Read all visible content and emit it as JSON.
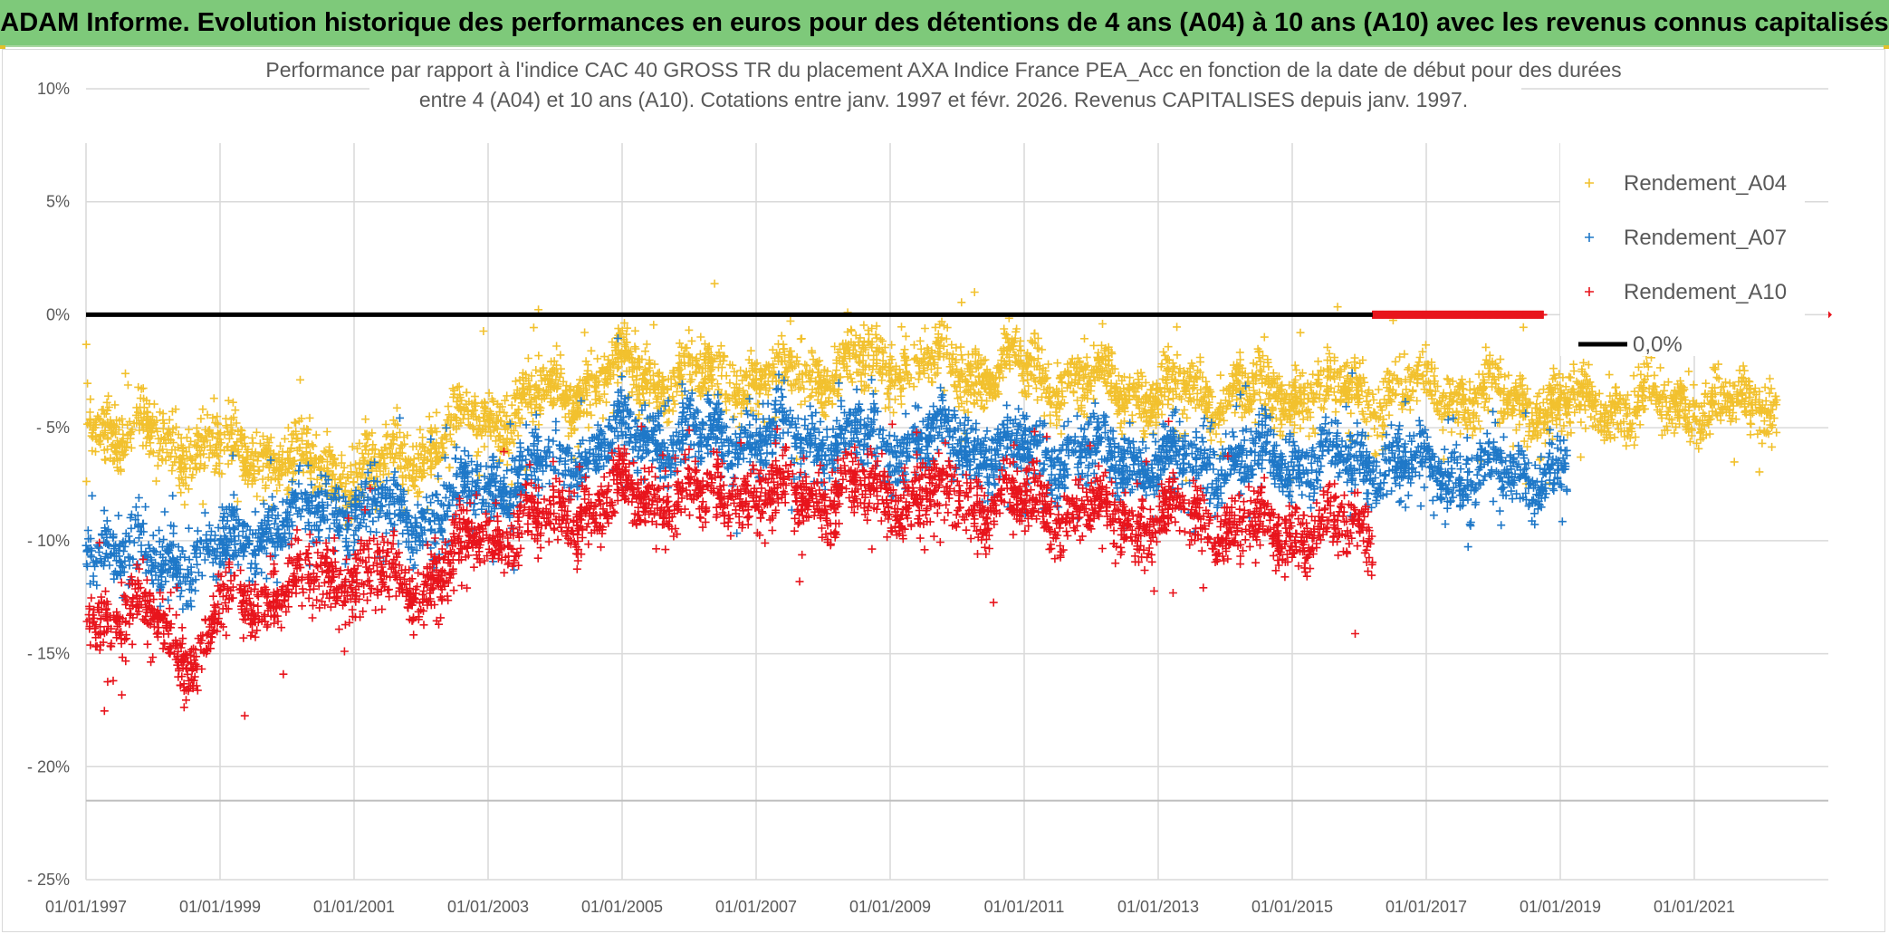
{
  "banner": {
    "title": "ADAM Informe. Evolution historique des performances en euros pour des détentions de 4 ans (A04) à 10 ans (A10) avec les revenus connus capitalisés"
  },
  "chart_data": {
    "type": "scatter",
    "title_line1": "Performance par rapport à l'indice CAC 40 GROSS TR  du placement AXA Indice France PEA_Acc en fonction de la date de début pour des durées",
    "title_line2": "entre 4 (A04) et 10 ans (A10). Cotations entre janv. 1997 et févr. 2026. Revenus CAPITALISES depuis janv. 1997.",
    "xlabel": "",
    "ylabel": "",
    "xlim": [
      1997.0,
      2023.0
    ],
    "ylim": [
      -25,
      10
    ],
    "x_tick_values": [
      1997,
      1999,
      2001,
      2003,
      2005,
      2007,
      2009,
      2011,
      2013,
      2015,
      2017,
      2019,
      2021
    ],
    "x_tick_labels": [
      "01/01/1997",
      "01/01/1999",
      "01/01/2001",
      "01/01/2003",
      "01/01/2005",
      "01/01/2007",
      "01/01/2009",
      "01/01/2011",
      "01/01/2013",
      "01/01/2015",
      "01/01/2017",
      "01/01/2019",
      "01/01/2021"
    ],
    "y_tick_values": [
      10,
      5,
      0,
      -5,
      -10,
      -15,
      -20,
      -25
    ],
    "y_tick_labels": [
      "10%",
      "5%",
      "0%",
      "- 5%",
      "- 10%",
      "- 15%",
      "- 20%",
      "- 25%"
    ],
    "grid": true,
    "legend_position": "top-right",
    "marker": "+",
    "series": [
      {
        "name": "Rendement_A04",
        "color": "#f2c12e",
        "x_range": [
          1997.0,
          2022.25
        ],
        "trend": [
          [
            1997.0,
            -4.5
          ],
          [
            1998.0,
            -5.5
          ],
          [
            1999.0,
            -6.0
          ],
          [
            2000.0,
            -6.5
          ],
          [
            2001.0,
            -7.0
          ],
          [
            2002.0,
            -6.0
          ],
          [
            2003.0,
            -4.5
          ],
          [
            2004.0,
            -3.5
          ],
          [
            2005.0,
            -2.5
          ],
          [
            2007.0,
            -3.0
          ],
          [
            2009.0,
            -2.0
          ],
          [
            2011.0,
            -2.5
          ],
          [
            2013.0,
            -3.5
          ],
          [
            2015.0,
            -3.5
          ],
          [
            2017.0,
            -3.5
          ],
          [
            2019.0,
            -4.0
          ],
          [
            2021.0,
            -4.0
          ],
          [
            2022.25,
            -4.0
          ]
        ],
        "spread": 1.3
      },
      {
        "name": "Rendement_A07",
        "color": "#1f78c8",
        "x_range": [
          1997.0,
          2019.1
        ],
        "trend": [
          [
            1997.0,
            -9.5
          ],
          [
            1998.0,
            -11.0
          ],
          [
            1999.0,
            -10.5
          ],
          [
            2000.0,
            -9.0
          ],
          [
            2001.0,
            -8.5
          ],
          [
            2002.0,
            -9.0
          ],
          [
            2003.0,
            -7.5
          ],
          [
            2004.0,
            -6.5
          ],
          [
            2005.0,
            -5.5
          ],
          [
            2007.0,
            -5.5
          ],
          [
            2009.0,
            -5.5
          ],
          [
            2011.0,
            -6.0
          ],
          [
            2013.0,
            -6.5
          ],
          [
            2015.0,
            -6.5
          ],
          [
            2016.5,
            -6.5
          ],
          [
            2017.0,
            -7.0
          ],
          [
            2019.1,
            -7.0
          ]
        ],
        "spread": 1.4
      },
      {
        "name": "Rendement_A10",
        "color": "#e8141c",
        "x_range": [
          1997.0,
          2016.2
        ],
        "trend": [
          [
            1997.0,
            -13.0
          ],
          [
            1998.0,
            -13.5
          ],
          [
            1998.7,
            -15.5
          ],
          [
            1999.0,
            -13.0
          ],
          [
            2000.0,
            -12.0
          ],
          [
            2001.0,
            -11.5
          ],
          [
            2002.0,
            -12.0
          ],
          [
            2003.0,
            -9.5
          ],
          [
            2004.0,
            -9.0
          ],
          [
            2005.0,
            -8.0
          ],
          [
            2007.0,
            -8.0
          ],
          [
            2009.0,
            -8.0
          ],
          [
            2011.0,
            -8.5
          ],
          [
            2013.0,
            -9.0
          ],
          [
            2015.0,
            -9.5
          ],
          [
            2016.2,
            -9.5
          ]
        ],
        "spread": 1.4,
        "zero_band": [
          2016.2,
          2018.75
        ]
      },
      {
        "name": "0,0%",
        "color": "#000000",
        "type": "line",
        "x": [
          1997.0,
          2016.2
        ],
        "values": [
          0,
          0
        ]
      }
    ]
  }
}
